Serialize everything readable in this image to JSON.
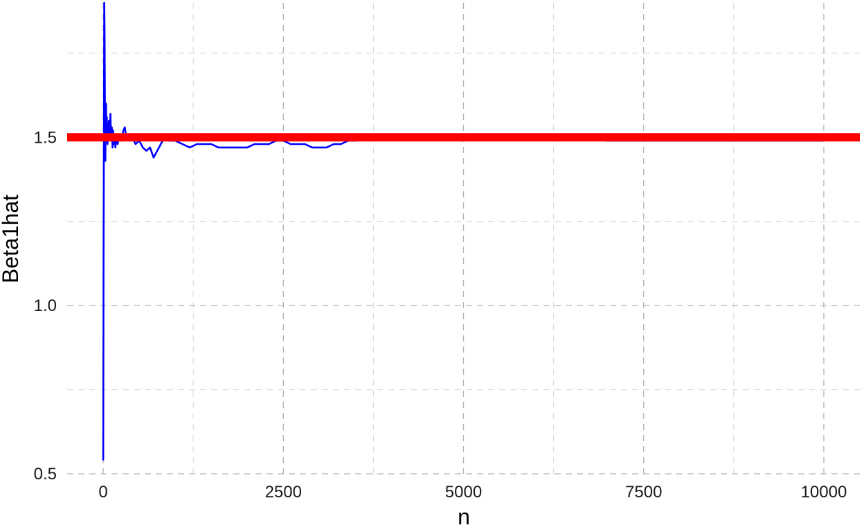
{
  "chart_data": {
    "type": "line",
    "xlabel": "n",
    "ylabel": "Beta1hat",
    "xlim": [
      -500,
      10500
    ],
    "ylim": [
      0.5,
      1.9
    ],
    "x_ticks": [
      0,
      2500,
      5000,
      7500,
      10000
    ],
    "x_tick_labels": [
      "0",
      "2500",
      "5000",
      "7500",
      "10000"
    ],
    "x_minor_ticks": [
      1250,
      3750,
      6250,
      8750
    ],
    "y_ticks": [
      0.5,
      1.0,
      1.5
    ],
    "y_tick_labels": [
      "0.5",
      "1.0",
      "1.5"
    ],
    "y_minor_ticks": [
      0.75,
      1.25,
      1.75
    ],
    "grid": true,
    "grid_style": "dashed",
    "series": [
      {
        "color": "#0000ff",
        "x": [
          1,
          5,
          10,
          15,
          20,
          25,
          30,
          35,
          40,
          45,
          50,
          60,
          70,
          80,
          90,
          100,
          110,
          120,
          130,
          140,
          150,
          160,
          170,
          180,
          200,
          220,
          250,
          280,
          300,
          320,
          340,
          360,
          380,
          400,
          450,
          500,
          550,
          600,
          650,
          700,
          750,
          800,
          850,
          900,
          1000,
          1100,
          1200,
          1300,
          1400,
          1500,
          1600,
          1700,
          1800,
          1900,
          2000,
          2100,
          2200,
          2300,
          2400,
          2500,
          2600,
          2700,
          2800,
          2900,
          3000,
          3100,
          3200,
          3300,
          3400,
          3500,
          3700,
          4000,
          4500,
          5000,
          5500,
          6000,
          6500,
          7000,
          7500,
          8000,
          8500,
          9000,
          9500,
          10000
        ],
        "values": [
          0.54,
          1.15,
          1.5,
          1.9,
          1.8,
          1.6,
          1.43,
          1.55,
          1.6,
          1.5,
          1.56,
          1.48,
          1.52,
          1.55,
          1.5,
          1.57,
          1.49,
          1.53,
          1.47,
          1.52,
          1.48,
          1.5,
          1.47,
          1.5,
          1.48,
          1.5,
          1.49,
          1.52,
          1.53,
          1.5,
          1.5,
          1.49,
          1.5,
          1.5,
          1.48,
          1.49,
          1.47,
          1.46,
          1.47,
          1.44,
          1.46,
          1.48,
          1.5,
          1.49,
          1.49,
          1.48,
          1.47,
          1.48,
          1.48,
          1.48,
          1.47,
          1.47,
          1.47,
          1.47,
          1.47,
          1.48,
          1.48,
          1.48,
          1.49,
          1.49,
          1.48,
          1.48,
          1.48,
          1.47,
          1.47,
          1.47,
          1.48,
          1.48,
          1.49,
          1.49,
          1.5,
          1.5,
          1.5,
          1.5,
          1.5,
          1.5,
          1.5,
          1.49,
          1.49,
          1.49,
          1.49,
          1.49,
          1.49,
          1.49
        ]
      }
    ],
    "hline": {
      "y": 1.5,
      "color": "#ff0000"
    }
  }
}
